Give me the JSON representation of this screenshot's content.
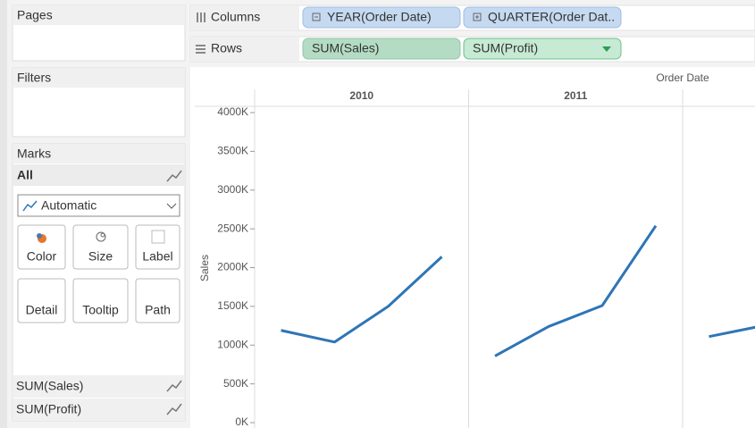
{
  "panels": {
    "pages": "Pages",
    "filters": "Filters"
  },
  "shelves": {
    "columns": {
      "label": "Columns",
      "pills": [
        "YEAR(Order Date)",
        "QUARTER(Order Dat.."
      ]
    },
    "rows": {
      "label": "Rows",
      "pills": [
        "SUM(Sales)",
        "SUM(Profit)"
      ]
    }
  },
  "marks": {
    "title": "Marks",
    "all": "All",
    "type": "Automatic",
    "cards": [
      "Color",
      "Size",
      "Label",
      "Detail",
      "Tooltip",
      "Path"
    ],
    "fields": [
      "SUM(Sales)",
      "SUM(Profit)"
    ]
  },
  "chart_data": {
    "type": "line",
    "column_header": "Order Date",
    "y_label": "Sales",
    "color": "#2e75b6",
    "panes": [
      {
        "label": "2010",
        "values": [
          1190000,
          1040000,
          1500000,
          2140000
        ]
      },
      {
        "label": "2011",
        "values": [
          860000,
          1240000,
          1510000,
          2540000
        ]
      },
      {
        "label": null,
        "values": [
          1110000,
          1250000
        ]
      }
    ],
    "ylim": [
      0,
      4000000
    ],
    "yticks": [
      {
        "value": 0,
        "label": "0K"
      },
      {
        "value": 500000,
        "label": "500K"
      },
      {
        "value": 1000000,
        "label": "1000K"
      },
      {
        "value": 1500000,
        "label": "1500K"
      },
      {
        "value": 2000000,
        "label": "2000K"
      },
      {
        "value": 2500000,
        "label": "2500K"
      },
      {
        "value": 3000000,
        "label": "3000K"
      },
      {
        "value": 3500000,
        "label": "3500K"
      },
      {
        "value": 4000000,
        "label": "4000K"
      }
    ]
  }
}
